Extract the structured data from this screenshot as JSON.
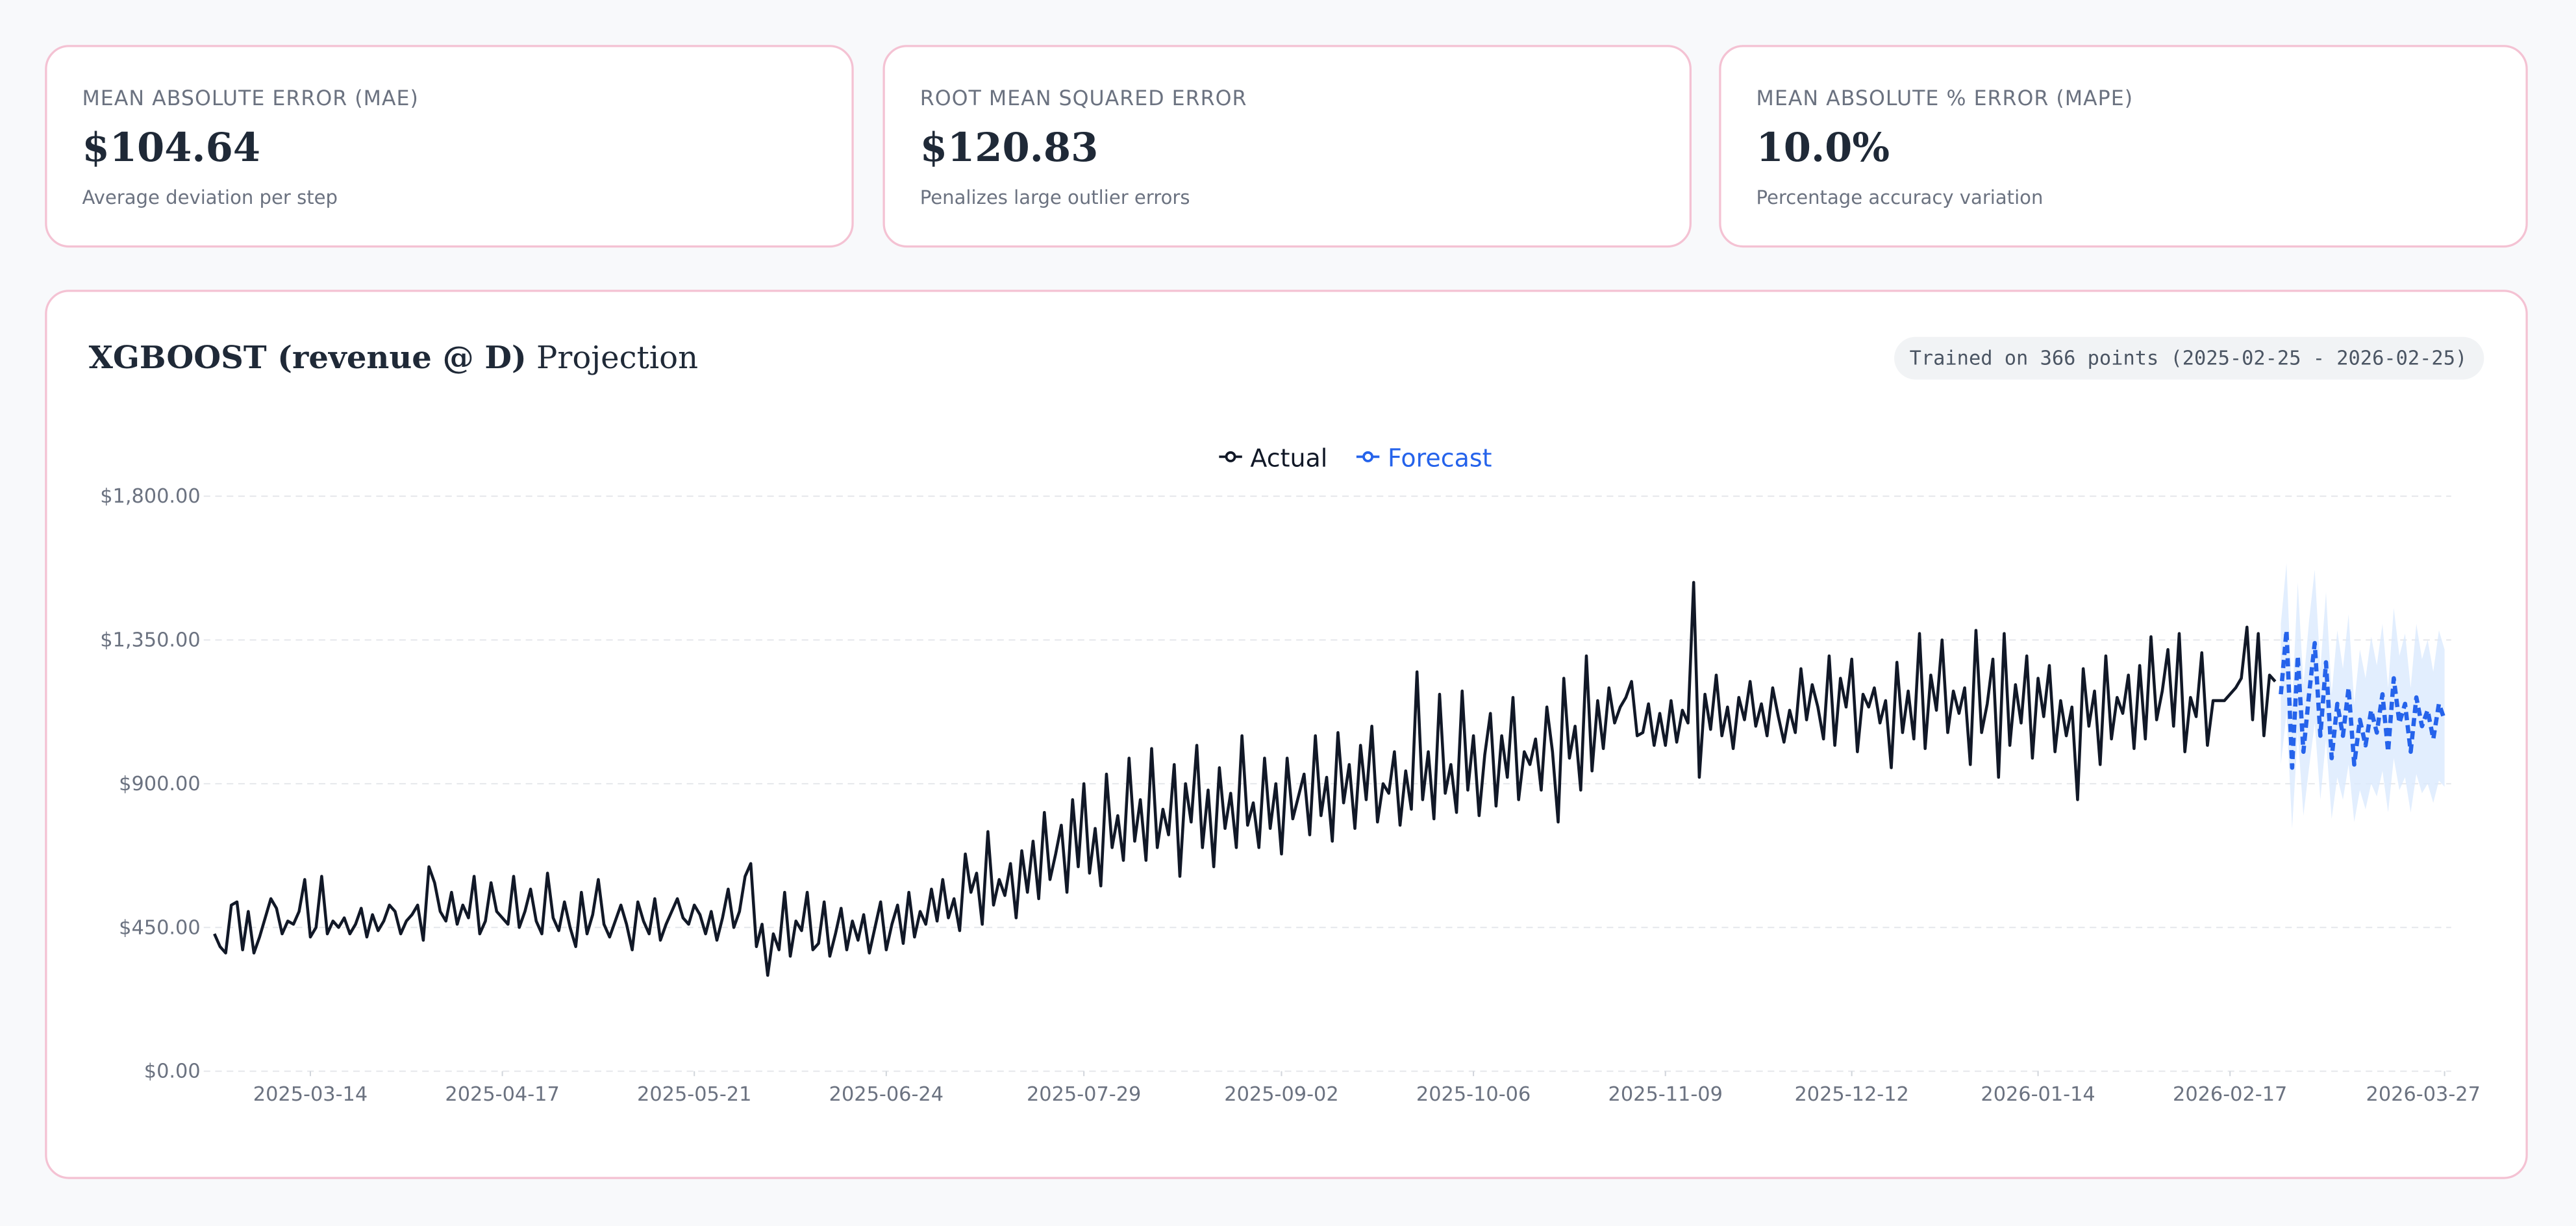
{
  "cards": [
    {
      "label": "MEAN ABSOLUTE ERROR (MAE)",
      "value": "$104.64",
      "note": "Average deviation per step"
    },
    {
      "label": "ROOT MEAN SQUARED ERROR",
      "value": "$120.83",
      "note": "Penalizes large outlier errors"
    },
    {
      "label": "MEAN ABSOLUTE % ERROR (MAPE)",
      "value": "10.0%",
      "note": "Percentage accuracy variation"
    }
  ],
  "chart_data": {
    "type": "line",
    "title": "XGBOOST (revenue @ D)",
    "title_suffix": "Projection",
    "badge": "Trained on 366 points (2025-02-25 - 2026-02-25)",
    "legend": "top-center",
    "grid": true,
    "xlim": [
      "2025-02-25",
      "2026-03-27"
    ],
    "xticks": [
      "2025-03-14",
      "2025-04-17",
      "2025-05-21",
      "2025-06-24",
      "2025-07-29",
      "2025-09-02",
      "2025-10-06",
      "2025-11-09",
      "2025-12-12",
      "2026-01-14",
      "2026-02-17",
      "2026-03-27"
    ],
    "ylim": [
      0,
      1800
    ],
    "yticks": [
      {
        "value": 0,
        "label": "$0.00"
      },
      {
        "value": 450,
        "label": "$450.00"
      },
      {
        "value": 900,
        "label": "$900.00"
      },
      {
        "value": 1350,
        "label": "$1,350.00"
      },
      {
        "value": 1800,
        "label": "$1,800.00"
      }
    ],
    "series": [
      {
        "name": "Actual",
        "color": "#111827",
        "x": [
          "2025-02-25",
          "2025-02-26",
          "2025-02-27",
          "2025-02-28",
          "2025-03-01",
          "2025-03-02",
          "2025-03-03",
          "2025-03-04",
          "2025-03-05",
          "2025-03-06",
          "2025-03-07",
          "2025-03-08",
          "2025-03-09",
          "2025-03-10",
          "2025-03-11",
          "2025-03-12",
          "2025-03-13",
          "2025-03-14",
          "2025-03-15",
          "2025-03-16",
          "2025-03-17",
          "2025-03-18",
          "2025-03-19",
          "2025-03-20",
          "2025-03-21",
          "2025-03-22",
          "2025-03-23",
          "2025-03-24",
          "2025-03-25",
          "2025-03-26",
          "2025-03-27",
          "2025-03-28",
          "2025-03-29",
          "2025-03-30",
          "2025-03-31",
          "2025-04-01",
          "2025-04-02",
          "2025-04-03",
          "2025-04-04",
          "2025-04-05",
          "2025-04-06",
          "2025-04-07",
          "2025-04-08",
          "2025-04-09",
          "2025-04-10",
          "2025-04-11",
          "2025-04-12",
          "2025-04-13",
          "2025-04-14",
          "2025-04-15",
          "2025-04-16",
          "2025-04-17",
          "2025-04-18",
          "2025-04-19",
          "2025-04-20",
          "2025-04-21",
          "2025-04-22",
          "2025-04-23",
          "2025-04-24",
          "2025-04-25",
          "2025-04-26",
          "2025-04-27",
          "2025-04-28",
          "2025-04-29",
          "2025-04-30",
          "2025-05-01",
          "2025-05-02",
          "2025-05-03",
          "2025-05-04",
          "2025-05-05",
          "2025-05-06",
          "2025-05-07",
          "2025-05-08",
          "2025-05-09",
          "2025-05-10",
          "2025-05-11",
          "2025-05-12",
          "2025-05-13",
          "2025-05-14",
          "2025-05-15",
          "2025-05-16",
          "2025-05-17",
          "2025-05-18",
          "2025-05-19",
          "2025-05-20",
          "2025-05-21",
          "2025-05-22",
          "2025-05-23",
          "2025-05-24",
          "2025-05-25",
          "2025-05-26",
          "2025-05-27",
          "2025-05-28",
          "2025-05-29",
          "2025-05-30",
          "2025-05-31",
          "2025-06-01",
          "2025-06-02",
          "2025-06-03",
          "2025-06-04",
          "2025-06-05",
          "2025-06-06",
          "2025-06-07",
          "2025-06-08",
          "2025-06-09",
          "2025-06-10",
          "2025-06-11",
          "2025-06-12",
          "2025-06-13",
          "2025-06-14",
          "2025-06-15",
          "2025-06-16",
          "2025-06-17",
          "2025-06-18",
          "2025-06-19",
          "2025-06-20",
          "2025-06-21",
          "2025-06-22",
          "2025-06-23",
          "2025-06-24",
          "2025-06-25",
          "2025-06-26",
          "2025-06-27",
          "2025-06-28",
          "2025-06-29",
          "2025-06-30",
          "2025-07-01",
          "2025-07-02",
          "2025-07-03",
          "2025-07-04",
          "2025-07-05",
          "2025-07-06",
          "2025-07-07",
          "2025-07-08",
          "2025-07-09",
          "2025-07-10",
          "2025-07-11",
          "2025-07-12",
          "2025-07-13",
          "2025-07-14",
          "2025-07-15",
          "2025-07-16",
          "2025-07-17",
          "2025-07-18",
          "2025-07-19",
          "2025-07-20",
          "2025-07-21",
          "2025-07-22",
          "2025-07-23",
          "2025-07-24",
          "2025-07-25",
          "2025-07-26",
          "2025-07-27",
          "2025-07-28",
          "2025-07-29",
          "2025-07-30",
          "2025-07-31",
          "2025-08-01",
          "2025-08-02",
          "2025-08-03",
          "2025-08-04",
          "2025-08-05",
          "2025-08-06",
          "2025-08-07",
          "2025-08-08",
          "2025-08-09",
          "2025-08-10",
          "2025-08-11",
          "2025-08-12",
          "2025-08-13",
          "2025-08-14",
          "2025-08-15",
          "2025-08-16",
          "2025-08-17",
          "2025-08-18",
          "2025-08-19",
          "2025-08-20",
          "2025-08-21",
          "2025-08-22",
          "2025-08-23",
          "2025-08-24",
          "2025-08-25",
          "2025-08-26",
          "2025-08-27",
          "2025-08-28",
          "2025-08-29",
          "2025-08-30",
          "2025-08-31",
          "2025-09-01",
          "2025-09-02",
          "2025-09-03",
          "2025-09-04",
          "2025-09-05",
          "2025-09-06",
          "2025-09-07",
          "2025-09-08",
          "2025-09-09",
          "2025-09-10",
          "2025-09-11",
          "2025-09-12",
          "2025-09-13",
          "2025-09-14",
          "2025-09-15",
          "2025-09-16",
          "2025-09-17",
          "2025-09-18",
          "2025-09-19",
          "2025-09-20",
          "2025-09-21",
          "2025-09-22",
          "2025-09-23",
          "2025-09-24",
          "2025-09-25",
          "2025-09-26",
          "2025-09-27",
          "2025-09-28",
          "2025-09-29",
          "2025-09-30",
          "2025-10-01",
          "2025-10-02",
          "2025-10-03",
          "2025-10-04",
          "2025-10-05",
          "2025-10-06",
          "2025-10-07",
          "2025-10-08",
          "2025-10-09",
          "2025-10-10",
          "2025-10-11",
          "2025-10-12",
          "2025-10-13",
          "2025-10-14",
          "2025-10-15",
          "2025-10-16",
          "2025-10-17",
          "2025-10-18",
          "2025-10-19",
          "2025-10-20",
          "2025-10-21",
          "2025-10-22",
          "2025-10-23",
          "2025-10-24",
          "2025-10-25",
          "2025-10-26",
          "2025-10-27",
          "2025-10-28",
          "2025-10-29",
          "2025-10-30",
          "2025-10-31",
          "2025-11-01",
          "2025-11-02",
          "2025-11-03",
          "2025-11-04",
          "2025-11-05",
          "2025-11-06",
          "2025-11-07",
          "2025-11-08",
          "2025-11-09",
          "2025-11-10",
          "2025-11-11",
          "2025-11-12",
          "2025-11-13",
          "2025-11-14",
          "2025-11-15",
          "2025-11-16",
          "2025-11-17",
          "2025-11-18",
          "2025-11-19",
          "2025-11-20",
          "2025-11-21",
          "2025-11-22",
          "2025-11-23",
          "2025-11-24",
          "2025-11-25",
          "2025-11-26",
          "2025-11-27",
          "2025-11-28",
          "2025-11-29",
          "2025-11-30",
          "2025-12-01",
          "2025-12-02",
          "2025-12-03",
          "2025-12-04",
          "2025-12-05",
          "2025-12-06",
          "2025-12-07",
          "2025-12-08",
          "2025-12-09",
          "2025-12-10",
          "2025-12-11",
          "2025-12-12",
          "2025-12-13",
          "2025-12-14",
          "2025-12-15",
          "2025-12-16",
          "2025-12-17",
          "2025-12-18",
          "2025-12-19",
          "2025-12-20",
          "2025-12-21",
          "2025-12-22",
          "2025-12-23",
          "2025-12-24",
          "2025-12-25",
          "2025-12-26",
          "2025-12-27",
          "2025-12-28",
          "2025-12-29",
          "2025-12-30",
          "2025-12-31",
          "2026-01-01",
          "2026-01-02",
          "2026-01-03",
          "2026-01-04",
          "2026-01-05",
          "2026-01-06",
          "2026-01-07",
          "2026-01-08",
          "2026-01-09",
          "2026-01-10",
          "2026-01-11",
          "2026-01-12",
          "2026-01-13",
          "2026-01-14",
          "2026-01-15",
          "2026-01-16",
          "2026-01-17",
          "2026-01-18",
          "2026-01-19",
          "2026-01-20",
          "2026-01-21",
          "2026-01-22",
          "2026-01-23",
          "2026-01-24",
          "2026-01-25",
          "2026-01-26",
          "2026-01-27",
          "2026-01-28",
          "2026-01-29",
          "2026-01-30",
          "2026-01-31",
          "2026-02-01",
          "2026-02-02",
          "2026-02-03",
          "2026-02-04",
          "2026-02-05",
          "2026-02-06",
          "2026-02-07",
          "2026-02-08",
          "2026-02-09",
          "2026-02-10",
          "2026-02-11",
          "2026-02-12",
          "2026-02-13",
          "2026-02-14",
          "2026-02-15",
          "2026-02-16",
          "2026-02-17",
          "2026-02-18",
          "2026-02-19",
          "2026-02-20",
          "2026-02-21",
          "2026-02-22",
          "2026-02-23",
          "2026-02-24",
          "2026-02-25"
        ],
        "values": [
          430,
          390,
          370,
          520,
          530,
          380,
          500,
          370,
          420,
          480,
          540,
          510,
          430,
          470,
          460,
          500,
          600,
          420,
          450,
          610,
          430,
          470,
          450,
          480,
          430,
          460,
          510,
          420,
          490,
          440,
          470,
          520,
          500,
          430,
          470,
          490,
          520,
          410,
          640,
          590,
          500,
          470,
          560,
          460,
          520,
          480,
          610,
          430,
          470,
          590,
          500,
          480,
          460,
          610,
          450,
          500,
          570,
          470,
          430,
          620,
          480,
          440,
          530,
          450,
          390,
          560,
          430,
          490,
          600,
          460,
          420,
          470,
          520,
          460,
          380,
          530,
          470,
          430,
          540,
          410,
          460,
          500,
          540,
          480,
          460,
          520,
          490,
          430,
          500,
          410,
          480,
          570,
          450,
          500,
          610,
          650,
          390,
          460,
          300,
          430,
          380,
          560,
          360,
          470,
          440,
          560,
          380,
          400,
          530,
          360,
          430,
          510,
          380,
          470,
          410,
          490,
          370,
          450,
          530,
          380,
          460,
          520,
          400,
          560,
          420,
          500,
          460,
          570,
          470,
          600,
          480,
          540,
          440,
          680,
          560,
          620,
          460,
          750,
          520,
          600,
          550,
          650,
          480,
          690,
          560,
          720,
          540,
          810,
          600,
          680,
          770,
          560,
          850,
          640,
          900,
          620,
          760,
          580,
          930,
          700,
          800,
          660,
          980,
          720,
          850,
          660,
          1010,
          700,
          820,
          740,
          960,
          610,
          900,
          780,
          1020,
          700,
          880,
          640,
          950,
          760,
          870,
          700,
          1050,
          770,
          840,
          700,
          980,
          760,
          900,
          680,
          980,
          790,
          860,
          930,
          740,
          1050,
          800,
          920,
          720,
          1060,
          840,
          960,
          760,
          1020,
          850,
          1080,
          780,
          900,
          870,
          1000,
          770,
          940,
          820,
          1250,
          850,
          1000,
          790,
          1180,
          870,
          960,
          810,
          1190,
          880,
          1050,
          800,
          990,
          1120,
          830,
          1050,
          920,
          1170,
          850,
          1000,
          960,
          1040,
          880,
          1140,
          1000,
          780,
          1230,
          980,
          1080,
          880,
          1300,
          940,
          1160,
          1010,
          1200,
          1090,
          1140,
          1170,
          1220,
          1050,
          1060,
          1150,
          1020,
          1120,
          1020,
          1160,
          1030,
          1130,
          1090,
          1530,
          920,
          1180,
          1070,
          1240,
          1050,
          1140,
          1010,
          1170,
          1100,
          1220,
          1080,
          1150,
          1050,
          1200,
          1110,
          1030,
          1130,
          1060,
          1260,
          1100,
          1210,
          1140,
          1040,
          1300,
          1020,
          1230,
          1140,
          1290,
          1000,
          1180,
          1140,
          1200,
          1090,
          1160,
          950,
          1280,
          1060,
          1190,
          1040,
          1370,
          1010,
          1240,
          1130,
          1350,
          1060,
          1190,
          1120,
          1200,
          960,
          1380,
          1060,
          1150,
          1290,
          920,
          1370,
          1020,
          1210,
          1090,
          1300,
          980,
          1230,
          1110,
          1270,
          1000,
          1160,
          1050,
          1140,
          850,
          1260,
          1080,
          1190,
          960,
          1300,
          1040,
          1170,
          1120,
          1240,
          1010,
          1270,
          1040,
          1360,
          1100,
          1190,
          1320,
          1080,
          1370,
          1000,
          1170,
          1110,
          1310,
          1020,
          1160,
          1160,
          1160,
          1180,
          1200,
          1230,
          1390,
          1100,
          1370,
          1050,
          1240,
          1220
        ]
      },
      {
        "name": "Forecast",
        "color": "#2563eb",
        "dashed": true,
        "band_color": "#dbeafe",
        "x": [
          "2026-02-26",
          "2026-02-27",
          "2026-02-28",
          "2026-03-01",
          "2026-03-02",
          "2026-03-03",
          "2026-03-04",
          "2026-03-05",
          "2026-03-06",
          "2026-03-07",
          "2026-03-08",
          "2026-03-09",
          "2026-03-10",
          "2026-03-11",
          "2026-03-12",
          "2026-03-13",
          "2026-03-14",
          "2026-03-15",
          "2026-03-16",
          "2026-03-17",
          "2026-03-18",
          "2026-03-19",
          "2026-03-20",
          "2026-03-21",
          "2026-03-22",
          "2026-03-23",
          "2026-03-24",
          "2026-03-25",
          "2026-03-26",
          "2026-03-27"
        ],
        "values": [
          1180,
          1380,
          950,
          1300,
          1000,
          1180,
          1340,
          1050,
          1280,
          980,
          1150,
          1050,
          1200,
          960,
          1100,
          1020,
          1130,
          1060,
          1180,
          1000,
          1230,
          1090,
          1150,
          1000,
          1170,
          1080,
          1130,
          1040,
          1150,
          1100
        ],
        "lower": [
          960,
          1120,
          760,
          1060,
          800,
          950,
          1090,
          850,
          1040,
          790,
          920,
          850,
          960,
          780,
          880,
          820,
          900,
          860,
          940,
          810,
          980,
          880,
          920,
          810,
          930,
          870,
          900,
          840,
          910,
          890
        ],
        "upper": [
          1400,
          1590,
          1150,
          1530,
          1210,
          1410,
          1570,
          1260,
          1500,
          1180,
          1380,
          1260,
          1430,
          1150,
          1320,
          1230,
          1360,
          1270,
          1400,
          1200,
          1450,
          1300,
          1370,
          1200,
          1400,
          1290,
          1350,
          1250,
          1380,
          1320
        ]
      }
    ]
  }
}
